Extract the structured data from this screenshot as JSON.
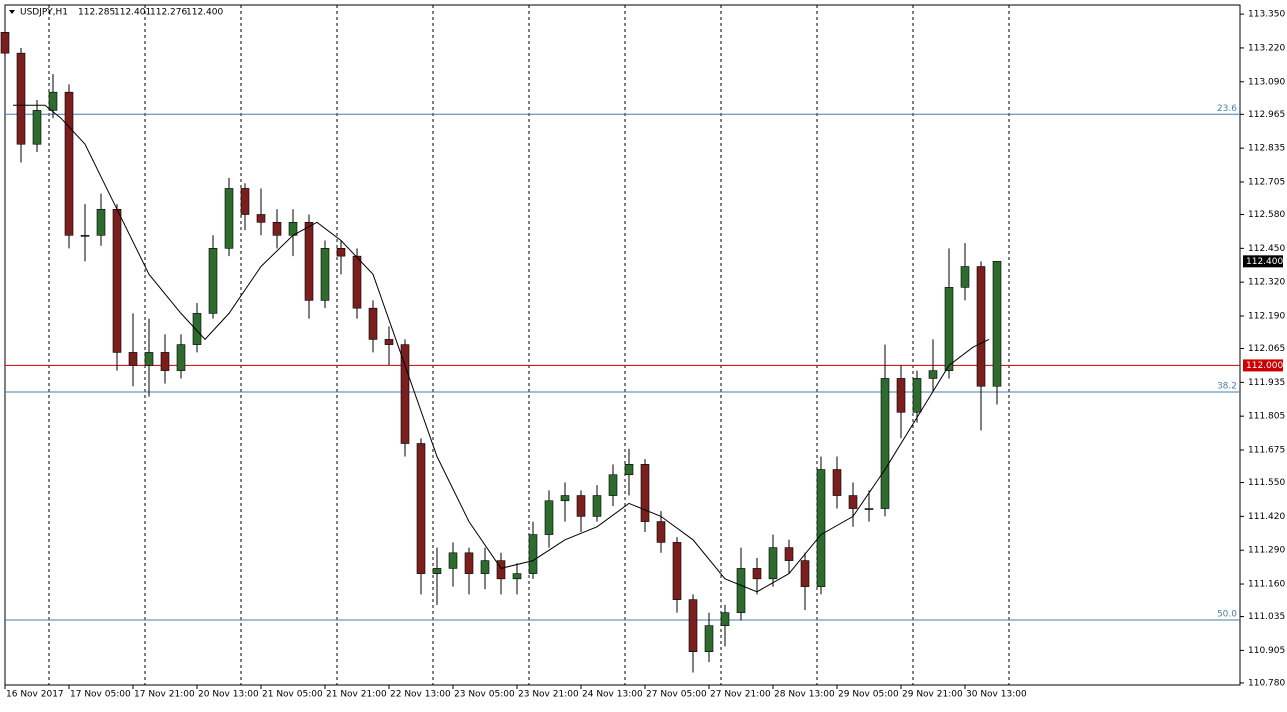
{
  "chart_data": {
    "type": "candlestick",
    "title": "USDJPY,H1",
    "ohlc_header": [
      {
        "value": 112.285,
        "label": "112.285"
      },
      {
        "value": 112.401,
        "label": "112.401"
      },
      {
        "value": 112.276,
        "label": "112.276"
      },
      {
        "value": 112.4,
        "label": "112.400"
      }
    ],
    "x": [
      0,
      4,
      8,
      12,
      16,
      20,
      24,
      28,
      32,
      36,
      40,
      44,
      48,
      52,
      56,
      60,
      64,
      68,
      72,
      76,
      80,
      84,
      88,
      92,
      96,
      100,
      104,
      108,
      112,
      116,
      120,
      124,
      128,
      132,
      136,
      140,
      144,
      148,
      152,
      156,
      160,
      164,
      168,
      172,
      176,
      180,
      184,
      188,
      192,
      196,
      200,
      204,
      208,
      212,
      216,
      220,
      224,
      228,
      232,
      236,
      240,
      244,
      248
    ],
    "open": [
      113.28,
      113.2,
      112.85,
      112.98,
      113.05,
      112.5,
      112.5,
      112.6,
      112.05,
      112.0,
      112.05,
      111.98,
      112.08,
      112.2,
      112.45,
      112.68,
      112.58,
      112.55,
      112.5,
      112.55,
      112.25,
      112.45,
      112.42,
      112.22,
      112.1,
      112.08,
      111.7,
      111.2,
      111.22,
      111.28,
      111.2,
      111.25,
      111.18,
      111.2,
      111.35,
      111.48,
      111.5,
      111.42,
      111.5,
      111.58,
      111.62,
      111.4,
      111.32,
      111.1,
      110.9,
      111.0,
      111.05,
      111.22,
      111.18,
      111.3,
      111.25,
      111.15,
      111.6,
      111.5,
      111.45,
      111.45,
      111.95,
      111.82,
      111.95,
      111.98,
      112.3,
      112.38,
      111.92
    ],
    "high": [
      113.32,
      113.22,
      113.02,
      113.12,
      113.08,
      112.62,
      112.66,
      112.62,
      112.2,
      112.18,
      112.12,
      112.12,
      112.24,
      112.5,
      112.72,
      112.7,
      112.68,
      112.6,
      112.6,
      112.58,
      112.48,
      112.48,
      112.45,
      112.25,
      112.15,
      112.1,
      111.72,
      111.3,
      111.32,
      111.3,
      111.3,
      111.28,
      111.24,
      111.4,
      111.52,
      111.55,
      111.52,
      111.54,
      111.62,
      111.68,
      111.64,
      111.44,
      111.34,
      111.12,
      111.05,
      111.08,
      111.3,
      111.26,
      111.35,
      111.33,
      111.28,
      111.65,
      111.65,
      111.55,
      111.52,
      112.08,
      112.0,
      111.98,
      112.1,
      112.45,
      112.47,
      112.4,
      112.4
    ],
    "low": [
      113.15,
      112.78,
      112.82,
      112.95,
      112.45,
      112.4,
      112.46,
      111.98,
      111.92,
      111.88,
      111.93,
      111.95,
      112.05,
      112.18,
      112.42,
      112.52,
      112.5,
      112.45,
      112.42,
      112.18,
      112.22,
      112.35,
      112.18,
      112.05,
      112.0,
      111.65,
      111.12,
      111.08,
      111.15,
      111.12,
      111.14,
      111.12,
      111.12,
      111.18,
      111.3,
      111.4,
      111.36,
      111.4,
      111.46,
      111.5,
      111.36,
      111.28,
      111.05,
      110.82,
      110.86,
      110.92,
      111.02,
      111.12,
      111.15,
      111.2,
      111.06,
      111.12,
      111.45,
      111.38,
      111.4,
      111.42,
      111.72,
      111.78,
      111.9,
      111.95,
      112.25,
      111.75,
      111.85
    ],
    "close": [
      113.2,
      112.85,
      112.98,
      113.05,
      112.5,
      112.5,
      112.6,
      112.05,
      112.0,
      112.05,
      111.98,
      112.08,
      112.2,
      112.45,
      112.68,
      112.58,
      112.55,
      112.5,
      112.55,
      112.25,
      112.45,
      112.42,
      112.22,
      112.1,
      112.08,
      111.7,
      111.2,
      111.22,
      111.28,
      111.2,
      111.25,
      111.18,
      111.2,
      111.35,
      111.48,
      111.5,
      111.42,
      111.5,
      111.58,
      111.62,
      111.4,
      111.32,
      111.1,
      110.9,
      111.0,
      111.05,
      111.22,
      111.18,
      111.3,
      111.25,
      111.15,
      111.6,
      111.5,
      111.45,
      111.45,
      111.95,
      111.82,
      111.95,
      111.98,
      112.3,
      112.38,
      111.92,
      112.4
    ],
    "up_color": "#2e6b2e",
    "down_color": "#7a1e1e",
    "ma": {
      "color": "#000000",
      "x": [
        2,
        10,
        14,
        20,
        28,
        36,
        44,
        50,
        56,
        64,
        72,
        78,
        84,
        92,
        100,
        108,
        116,
        124,
        132,
        140,
        148,
        156,
        164,
        172,
        180,
        188,
        196,
        204,
        212,
        220,
        228,
        236,
        242,
        246
      ],
      "values": [
        113.0,
        113.0,
        112.95,
        112.85,
        112.6,
        112.35,
        112.2,
        112.1,
        112.2,
        112.38,
        112.5,
        112.55,
        112.48,
        112.35,
        112.0,
        111.65,
        111.4,
        111.22,
        111.25,
        111.33,
        111.38,
        111.47,
        111.42,
        111.33,
        111.18,
        111.13,
        111.2,
        111.35,
        111.42,
        111.6,
        111.8,
        112.0,
        112.07,
        112.1
      ]
    },
    "xlim": [
      0,
      308.75
    ],
    "ylim": [
      110.772,
      113.385
    ],
    "yticks": [
      {
        "value": 113.35,
        "label": "113.350"
      },
      {
        "value": 113.22,
        "label": "113.220"
      },
      {
        "value": 113.09,
        "label": "113.090"
      },
      {
        "value": 112.965,
        "label": "112.965"
      },
      {
        "value": 112.835,
        "label": "112.835"
      },
      {
        "value": 112.705,
        "label": "112.705"
      },
      {
        "value": 112.58,
        "label": "112.580"
      },
      {
        "value": 112.45,
        "label": "112.450"
      },
      {
        "value": 112.32,
        "label": "112.320"
      },
      {
        "value": 112.19,
        "label": "112.190"
      },
      {
        "value": 112.065,
        "label": "112.065"
      },
      {
        "value": 111.935,
        "label": "111.935"
      },
      {
        "value": 111.805,
        "label": "111.805"
      },
      {
        "value": 111.675,
        "label": "111.675"
      },
      {
        "value": 111.55,
        "label": "111.550"
      },
      {
        "value": 111.42,
        "label": "111.420"
      },
      {
        "value": 111.29,
        "label": "111.290"
      },
      {
        "value": 111.16,
        "label": "111.160"
      },
      {
        "value": 111.035,
        "label": "111.035"
      },
      {
        "value": 110.905,
        "label": "110.905"
      },
      {
        "value": 110.78,
        "label": "110.780"
      }
    ],
    "xticks": [
      {
        "value": 0,
        "label": "16 Nov 2017"
      },
      {
        "value": 16,
        "label": "17 Nov 05:00"
      },
      {
        "value": 32,
        "label": "17 Nov 21:00"
      },
      {
        "value": 48,
        "label": "20 Nov 13:00"
      },
      {
        "value": 64,
        "label": "21 Nov 05:00"
      },
      {
        "value": 80,
        "label": "21 Nov 21:00"
      },
      {
        "value": 96,
        "label": "22 Nov 13:00"
      },
      {
        "value": 112,
        "label": "23 Nov 05:00"
      },
      {
        "value": 128,
        "label": "23 Nov 21:00"
      },
      {
        "value": 144,
        "label": "24 Nov 13:00"
      },
      {
        "value": 160,
        "label": "27 Nov 05:00"
      },
      {
        "value": 176,
        "label": "27 Nov 21:00"
      },
      {
        "value": 192,
        "label": "28 Nov 13:00"
      },
      {
        "value": 208,
        "label": "29 Nov 05:00"
      },
      {
        "value": 224,
        "label": "29 Nov 21:00"
      },
      {
        "value": 240,
        "label": "30 Nov 13:00"
      }
    ],
    "separators": [
      11,
      35,
      59,
      83,
      107,
      131,
      155,
      179,
      203,
      227,
      251
    ],
    "levels": [
      {
        "value": 112.965,
        "label": "23.6",
        "color": "#4a7fa8"
      },
      {
        "value": 111.898,
        "label": "38.2",
        "color": "#4a7fa8"
      },
      {
        "value": 111.022,
        "label": "50.0",
        "color": "#4a7fa8"
      }
    ],
    "price_line": {
      "value": 112.0,
      "label": "112.000",
      "color": "#cc0000"
    },
    "last_price": {
      "value": 112.4,
      "label": "112.400"
    }
  }
}
